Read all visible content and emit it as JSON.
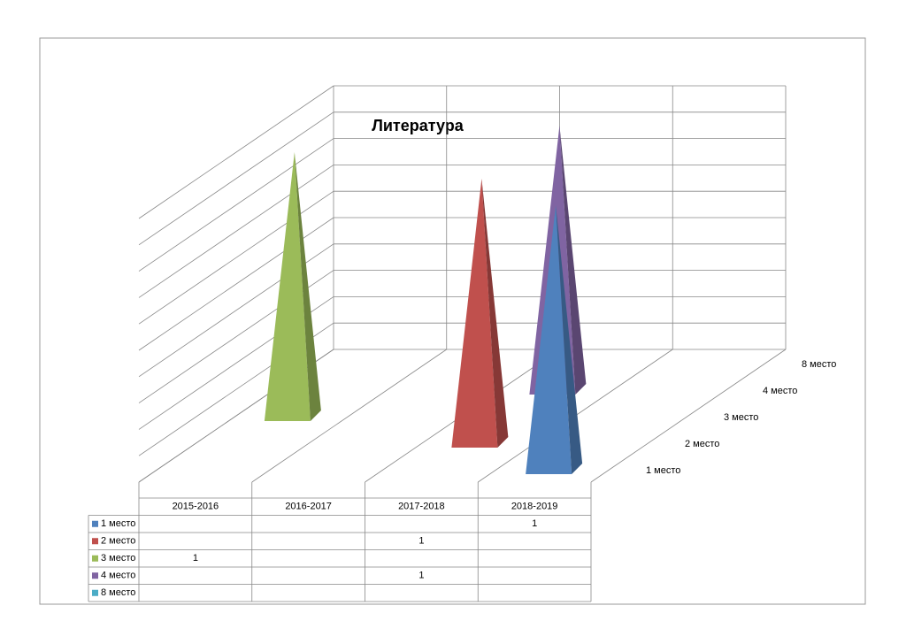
{
  "chart_data": {
    "type": "pyramid3d",
    "title": "Литература",
    "categories": [
      "2015-2016",
      "2016-2017",
      "2017-2018",
      "2018-2019"
    ],
    "series": [
      {
        "name": "1 место",
        "color": "#4f81bd",
        "values": [
          null,
          null,
          null,
          1
        ]
      },
      {
        "name": "2 место",
        "color": "#c0504d",
        "values": [
          null,
          null,
          1,
          null
        ]
      },
      {
        "name": "3 место",
        "color": "#9bbb59",
        "values": [
          1,
          null,
          null,
          null
        ]
      },
      {
        "name": "4 место",
        "color": "#8064a2",
        "values": [
          null,
          null,
          1,
          null
        ]
      },
      {
        "name": "8 место",
        "color": "#4bacc6",
        "values": [
          null,
          null,
          null,
          null
        ]
      }
    ],
    "ylim": [
      0,
      1
    ],
    "yticks": [
      0,
      0.1,
      0.2,
      0.3,
      0.4,
      0.5,
      0.6,
      0.7,
      0.8,
      0.9,
      1
    ],
    "grid": true,
    "data_table": true
  }
}
